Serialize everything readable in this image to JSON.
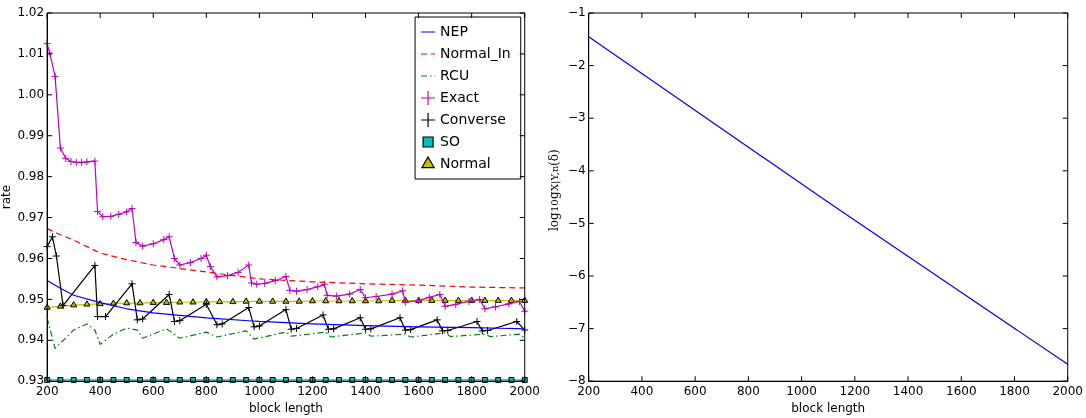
{
  "chart_data": [
    {
      "type": "line",
      "xlabel": "block length",
      "ylabel": "rate",
      "xlim": [
        200,
        2000
      ],
      "xticks": [
        200,
        400,
        600,
        800,
        1000,
        1200,
        1400,
        1600,
        1800,
        2000
      ],
      "ylim": [
        0.93,
        1.02
      ],
      "yticks": [
        0.93,
        0.94,
        0.95,
        0.96,
        0.97,
        0.98,
        0.99,
        {
          "value": 1,
          "label": "1.00"
        },
        1.01,
        1.02
      ],
      "grid": false,
      "legend": "top right",
      "series": [
        {
          "name": "NEP",
          "color": "#0000ff",
          "line_style": "solid",
          "marker": "none",
          "x": [
            200,
            250,
            300,
            400,
            500,
            600,
            800,
            1000,
            1200,
            1400,
            1600,
            1800,
            2000
          ],
          "values": [
            0.9546,
            0.9527,
            0.951,
            0.9492,
            0.9477,
            0.9467,
            0.9455,
            0.9446,
            0.944,
            0.9436,
            0.9433,
            0.9431,
            0.9428
          ]
        },
        {
          "name": "Normal_In",
          "color": "#ff0000",
          "line_style": "dashed",
          "marker": "none",
          "x": [
            200,
            250,
            300,
            400,
            500,
            600,
            800,
            1000,
            1200,
            1400,
            1600,
            1800,
            2000
          ],
          "values": [
            0.9673,
            0.9658,
            0.9645,
            0.9613,
            0.9597,
            0.9584,
            0.9567,
            0.955,
            0.9543,
            0.9538,
            0.9535,
            0.953,
            0.9528
          ]
        },
        {
          "name": "RCU",
          "color": "#008000",
          "line_style": "dashdot",
          "marker": "none",
          "x": [
            200,
            230,
            300,
            350,
            380,
            400,
            450,
            500,
            540,
            560,
            650,
            700,
            800,
            840,
            950,
            980,
            1100,
            1120,
            1250,
            1270,
            1400,
            1420,
            1550,
            1570,
            1700,
            1720,
            1850,
            1870,
            1980,
            2000
          ],
          "values": [
            0.9455,
            0.938,
            0.9425,
            0.944,
            0.9425,
            0.939,
            0.9415,
            0.943,
            0.9425,
            0.9405,
            0.9428,
            0.9405,
            0.942,
            0.9408,
            0.9423,
            0.9403,
            0.942,
            0.941,
            0.942,
            0.9408,
            0.9418,
            0.941,
            0.9415,
            0.9408,
            0.9418,
            0.9409,
            0.9415,
            0.9409,
            0.9415,
            0.9405
          ]
        },
        {
          "name": "Exact",
          "color": "#bf00bf",
          "line_style": "solid",
          "marker": "cross",
          "x": [
            200,
            210,
            230,
            250,
            270,
            290,
            310,
            330,
            350,
            380,
            390,
            410,
            440,
            470,
            500,
            520,
            535,
            560,
            600,
            640,
            660,
            680,
            700,
            740,
            780,
            800,
            815,
            840,
            880,
            920,
            960,
            970,
            990,
            1020,
            1060,
            1100,
            1115,
            1140,
            1180,
            1220,
            1245,
            1255,
            1290,
            1340,
            1380,
            1400,
            1440,
            1500,
            1540,
            1550,
            1600,
            1640,
            1680,
            1700,
            1740,
            1790,
            1830,
            1850,
            1890,
            1940,
            1980,
            2000
          ],
          "values": [
            1.0125,
            1.0102,
            1.0045,
            0.987,
            0.9845,
            0.9837,
            0.9835,
            0.9835,
            0.9836,
            0.9838,
            0.9715,
            0.9702,
            0.9703,
            0.9708,
            0.9714,
            0.9722,
            0.9639,
            0.963,
            0.9636,
            0.9646,
            0.9653,
            0.96,
            0.9584,
            0.959,
            0.96,
            0.9608,
            0.958,
            0.9555,
            0.9558,
            0.9566,
            0.9584,
            0.954,
            0.9537,
            0.9539,
            0.9546,
            0.9556,
            0.9522,
            0.952,
            0.9524,
            0.9531,
            0.9537,
            0.951,
            0.9508,
            0.9513,
            0.9524,
            0.9504,
            0.9507,
            0.9513,
            0.9521,
            0.9493,
            0.9497,
            0.9505,
            0.9512,
            0.9483,
            0.9488,
            0.9495,
            0.95,
            0.9477,
            0.9482,
            0.9489,
            0.9495,
            0.9471
          ]
        },
        {
          "name": "Converse",
          "color": "#000000",
          "line_style": "solid",
          "marker": "cross",
          "x": [
            200,
            220,
            235,
            260,
            380,
            390,
            420,
            520,
            540,
            560,
            660,
            680,
            700,
            800,
            840,
            860,
            960,
            980,
            1000,
            1100,
            1120,
            1140,
            1240,
            1260,
            1280,
            1380,
            1400,
            1420,
            1530,
            1550,
            1570,
            1670,
            1690,
            1710,
            1820,
            1840,
            1860,
            1970,
            2000
          ],
          "values": [
            0.9629,
            0.9653,
            0.9606,
            0.9485,
            0.9583,
            0.9458,
            0.9458,
            0.9538,
            0.945,
            0.9452,
            0.9512,
            0.9446,
            0.9448,
            0.9488,
            0.9438,
            0.944,
            0.948,
            0.9433,
            0.9435,
            0.9475,
            0.9427,
            0.9429,
            0.9462,
            0.9427,
            0.9428,
            0.9455,
            0.9427,
            0.9428,
            0.9455,
            0.9425,
            0.9426,
            0.945,
            0.9423,
            0.9424,
            0.9446,
            0.9423,
            0.9424,
            0.9446,
            0.9425
          ]
        },
        {
          "name": "SO",
          "color": "#00bfbf",
          "line_style": "solid",
          "marker": "square",
          "x": [
            200,
            250,
            300,
            350,
            400,
            450,
            500,
            550,
            600,
            650,
            700,
            750,
            800,
            850,
            900,
            950,
            1000,
            1050,
            1100,
            1150,
            1200,
            1250,
            1300,
            1350,
            1400,
            1450,
            1500,
            1550,
            1600,
            1650,
            1700,
            1750,
            1800,
            1850,
            1900,
            1950,
            2000
          ],
          "values": [
            0.9303,
            0.9303,
            0.9303,
            0.9303,
            0.9303,
            0.9303,
            0.9303,
            0.9303,
            0.9303,
            0.9303,
            0.9303,
            0.9303,
            0.9303,
            0.9303,
            0.9303,
            0.9303,
            0.9303,
            0.9303,
            0.9303,
            0.9303,
            0.9303,
            0.9303,
            0.9303,
            0.9303,
            0.9303,
            0.9303,
            0.9303,
            0.9303,
            0.9303,
            0.9303,
            0.9303,
            0.9303,
            0.9303,
            0.9303,
            0.9303,
            0.9303,
            0.9303
          ]
        },
        {
          "name": "Normal",
          "color": "#bfbf00",
          "line_style": "solid",
          "marker": "triangle",
          "x": [
            200,
            250,
            300,
            350,
            400,
            450,
            500,
            550,
            600,
            650,
            700,
            750,
            800,
            850,
            900,
            950,
            1000,
            1050,
            1100,
            1150,
            1200,
            1250,
            1300,
            1350,
            1400,
            1450,
            1500,
            1550,
            1600,
            1650,
            1700,
            1750,
            1800,
            1850,
            1900,
            1950,
            2000
          ],
          "values": [
            0.948,
            0.9483,
            0.9486,
            0.9488,
            0.9489,
            0.949,
            0.9491,
            0.9491,
            0.9492,
            0.9492,
            0.9493,
            0.9493,
            0.9494,
            0.9494,
            0.9494,
            0.9495,
            0.9495,
            0.9495,
            0.9495,
            0.9495,
            0.9496,
            0.9496,
            0.9496,
            0.9496,
            0.9496,
            0.9496,
            0.9497,
            0.9497,
            0.9497,
            0.9497,
            0.9497,
            0.9497,
            0.9497,
            0.9497,
            0.9497,
            0.9497,
            0.9497
          ]
        }
      ]
    },
    {
      "type": "line",
      "xlabel": "block length",
      "ylabel": "log$_{10}$g$_{X|Y,n}$(δ)",
      "xlim": [
        200,
        2000
      ],
      "xticks": [
        200,
        400,
        600,
        800,
        1000,
        1200,
        1400,
        1600,
        1800,
        2000
      ],
      "ylim": [
        -8,
        -1
      ],
      "yticks": [
        {
          "value": -8,
          "label": "−8"
        },
        {
          "value": -7,
          "label": "−7"
        },
        {
          "value": -6,
          "label": "−6"
        },
        {
          "value": -5,
          "label": "−5"
        },
        {
          "value": -4,
          "label": "−4"
        },
        {
          "value": -3,
          "label": "−3"
        },
        {
          "value": -2,
          "label": "−2"
        },
        {
          "value": -1,
          "label": "−1"
        }
      ],
      "grid": false,
      "series": [
        {
          "color": "#0000ff",
          "line_style": "solid",
          "marker": "none",
          "x": [
            200,
            1100,
            2000
          ],
          "values": [
            -1.45,
            -4.6,
            -7.68
          ]
        }
      ]
    }
  ]
}
